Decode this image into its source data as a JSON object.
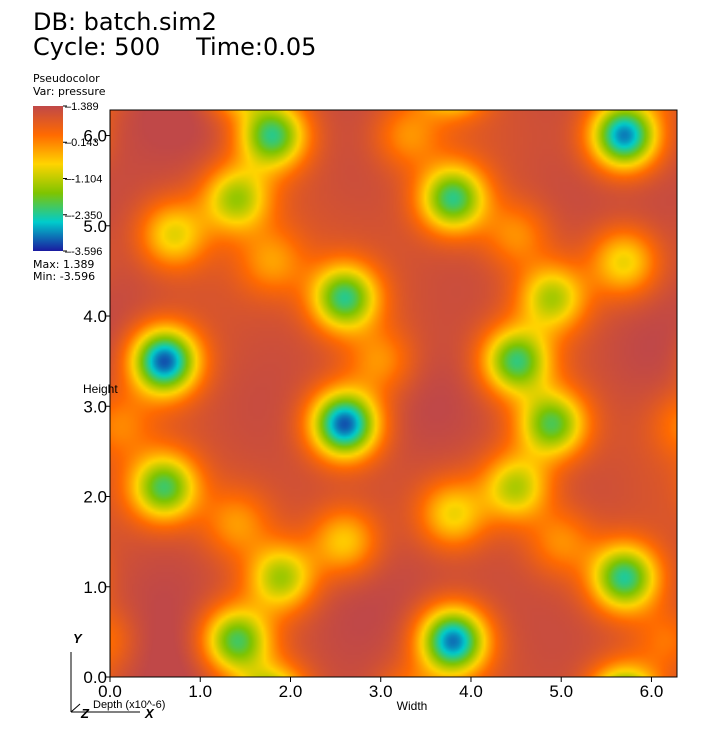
{
  "header": {
    "db_label": "DB: batch.sim2",
    "cycle_label": "Cycle: 500",
    "time_label": "Time:0.05"
  },
  "legend": {
    "plot_type": "Pseudocolor",
    "var_label": "Var: pressure",
    "max_label": "Max: 1.389",
    "min_label": "Min: -3.596",
    "ticks": [
      {
        "value": 1.389,
        "label": "1.389"
      },
      {
        "value": 0.143,
        "label": "0.143"
      },
      {
        "value": -1.104,
        "label": "-1.104"
      },
      {
        "value": -2.35,
        "label": "-2.350"
      },
      {
        "value": -3.596,
        "label": "-3.596"
      }
    ],
    "colormap": [
      "#c04848",
      "#ff6a00",
      "#ffd400",
      "#7fc400",
      "#00cccc",
      "#1a1aa0"
    ]
  },
  "chart_data": {
    "type": "heatmap",
    "variable": "pressure",
    "value_range": [
      -3.596,
      1.389
    ],
    "xlabel": "Width",
    "ylabel": "Height",
    "zlabel": "Depth (x10^-6)",
    "xlim": [
      0.0,
      6.283
    ],
    "ylim": [
      0.0,
      6.283
    ],
    "x_ticks": [
      "0.0",
      "1.0",
      "2.0",
      "3.0",
      "4.0",
      "5.0",
      "6.0"
    ],
    "y_ticks": [
      "0.0",
      "1.0",
      "2.0",
      "3.0",
      "4.0",
      "5.0",
      "6.0"
    ],
    "x_tick_values": [
      0,
      1,
      2,
      3,
      4,
      5,
      6
    ],
    "y_tick_values": [
      0,
      1,
      2,
      3,
      4,
      5,
      6
    ],
    "field": {
      "background": 0.9,
      "minima": [
        {
          "x": 2.6,
          "y": 2.8,
          "value": -3.5
        },
        {
          "x": 0.6,
          "y": 3.5,
          "value": -3.5
        },
        {
          "x": 5.7,
          "y": 6.0,
          "value": -3.3
        },
        {
          "x": 3.8,
          "y": 0.4,
          "value": -3.3
        },
        {
          "x": 1.8,
          "y": 6.0,
          "value": -2.4
        },
        {
          "x": 3.8,
          "y": 5.3,
          "value": -2.4
        },
        {
          "x": 2.6,
          "y": 4.2,
          "value": -2.4
        },
        {
          "x": 4.5,
          "y": 3.5,
          "value": -2.3
        },
        {
          "x": 4.9,
          "y": 2.8,
          "value": -2.1
        },
        {
          "x": 0.6,
          "y": 2.1,
          "value": -2.2
        },
        {
          "x": 1.4,
          "y": 0.4,
          "value": -2.3
        },
        {
          "x": 5.7,
          "y": 1.1,
          "value": -2.5
        },
        {
          "x": 1.4,
          "y": 5.3,
          "value": -1.5
        },
        {
          "x": 0.7,
          "y": 4.9,
          "value": -1.0
        },
        {
          "x": 1.9,
          "y": 1.1,
          "value": -1.5
        },
        {
          "x": 4.5,
          "y": 2.1,
          "value": -1.4
        },
        {
          "x": 4.9,
          "y": 4.2,
          "value": -1.4
        },
        {
          "x": 5.7,
          "y": 4.6,
          "value": -1.0
        },
        {
          "x": 3.8,
          "y": 1.8,
          "value": -0.9
        },
        {
          "x": 2.6,
          "y": 1.5,
          "value": -0.8
        },
        {
          "x": 3.3,
          "y": 6.0,
          "value": -0.2
        },
        {
          "x": 3.0,
          "y": 3.5,
          "value": -0.2
        },
        {
          "x": 5.0,
          "y": 1.5,
          "value": -0.2
        },
        {
          "x": 1.4,
          "y": 1.7,
          "value": -0.2
        },
        {
          "x": 1.8,
          "y": 4.6,
          "value": -0.2
        },
        {
          "x": 4.5,
          "y": 4.9,
          "value": -0.2
        },
        {
          "x": 0.1,
          "y": 2.8,
          "value": 0.0
        },
        {
          "x": 6.2,
          "y": 0.4,
          "value": 0.0
        }
      ],
      "maxima": [
        {
          "x": 3.6,
          "y": 3.0,
          "value": 1.389
        },
        {
          "x": 0.9,
          "y": 6.1,
          "value": 1.3
        },
        {
          "x": 6.0,
          "y": 3.6,
          "value": 1.35
        },
        {
          "x": 2.7,
          "y": 0.6,
          "value": 1.3
        },
        {
          "x": 6.1,
          "y": 5.3,
          "value": 1.2
        },
        {
          "x": 0.4,
          "y": 0.4,
          "value": 1.2
        },
        {
          "x": 1.6,
          "y": 2.9,
          "value": 1.2
        },
        {
          "x": 3.9,
          "y": 4.4,
          "value": 1.2
        },
        {
          "x": 5.2,
          "y": 2.0,
          "value": 1.2
        },
        {
          "x": 2.8,
          "y": 5.6,
          "value": 1.2
        },
        {
          "x": 5.0,
          "y": 0.4,
          "value": 1.2
        },
        {
          "x": 0.7,
          "y": 1.2,
          "value": 1.2
        },
        {
          "x": 2.4,
          "y": 2.0,
          "value": 1.1
        },
        {
          "x": 5.0,
          "y": 5.3,
          "value": 1.2
        },
        {
          "x": 0.4,
          "y": 4.3,
          "value": 1.1
        },
        {
          "x": 4.2,
          "y": 1.1,
          "value": 1.1
        },
        {
          "x": 2.0,
          "y": 3.8,
          "value": 1.1
        },
        {
          "x": 3.3,
          "y": 1.2,
          "value": 1.1
        }
      ]
    }
  },
  "triad": {
    "y_label": "Y",
    "x_label": "X",
    "z_label": "Z"
  }
}
